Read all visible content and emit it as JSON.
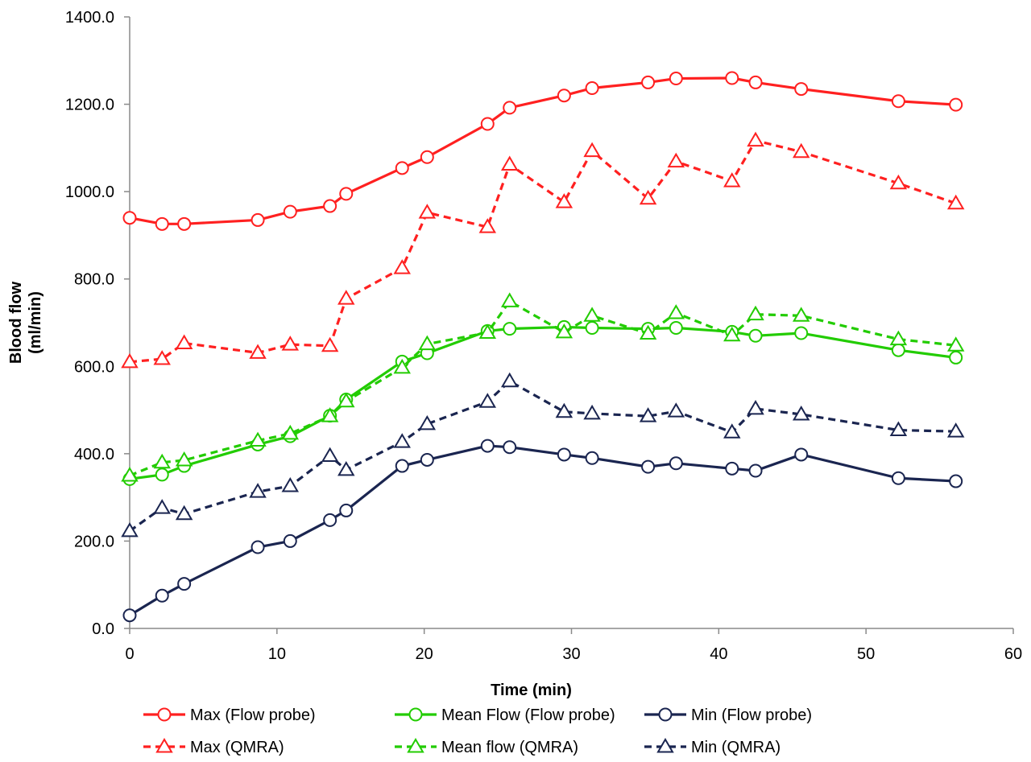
{
  "chart_data": {
    "type": "line",
    "title": "",
    "xlabel": "Time (min)",
    "ylabel": "Blood flow (ml/min)",
    "ylabel_lines": [
      "Blood flow",
      "(ml/min)"
    ],
    "xlim": [
      0,
      60
    ],
    "ylim": [
      0,
      1400
    ],
    "x_ticks": [
      0,
      10,
      20,
      30,
      40,
      50,
      60
    ],
    "x_tick_labels": [
      "0",
      "10",
      "20",
      "30",
      "40",
      "50",
      "60"
    ],
    "y_ticks": [
      0,
      200,
      400,
      600,
      800,
      1000,
      1200,
      1400
    ],
    "y_tick_labels": [
      "0.0",
      "200.0",
      "400.0",
      "600.0",
      "800.0",
      "1000.0",
      "1200.0",
      "1400.0"
    ],
    "grid": false,
    "legend_position": "bottom",
    "series": [
      {
        "name": "Max (Flow probe)",
        "color": "#ff2020",
        "dash": false,
        "marker": "circle",
        "x": [
          0,
          2.2,
          3.7,
          8.7,
          10.9,
          13.6,
          14.7,
          18.5,
          20.2,
          24.3,
          25.8,
          29.5,
          31.4,
          35.2,
          37.1,
          40.9,
          42.5,
          45.6,
          52.2,
          56.1
        ],
        "y": [
          940,
          926,
          926,
          935,
          954,
          967,
          995,
          1054,
          1079,
          1155,
          1192,
          1220,
          1237,
          1250,
          1259,
          1260,
          1250,
          1235,
          1207,
          1199
        ]
      },
      {
        "name": "Mean Flow (Flow probe)",
        "color": "#22cc00",
        "dash": false,
        "marker": "circle",
        "x": [
          0,
          2.2,
          3.7,
          8.7,
          10.9,
          13.6,
          14.7,
          18.5,
          20.2,
          24.3,
          25.8,
          29.5,
          31.4,
          35.2,
          37.1,
          40.9,
          42.5,
          45.6,
          52.2,
          56.1
        ],
        "y": [
          342,
          352,
          372,
          421,
          440,
          487,
          524,
          611,
          630,
          681,
          686,
          690,
          688,
          686,
          688,
          679,
          670,
          676,
          637,
          620
        ]
      },
      {
        "name": "Min (Flow probe)",
        "color": "#1a2550",
        "dash": false,
        "marker": "circle",
        "x": [
          0,
          2.2,
          3.7,
          8.7,
          10.9,
          13.6,
          14.7,
          18.5,
          20.2,
          24.3,
          25.8,
          29.5,
          31.4,
          35.2,
          37.1,
          40.9,
          42.5,
          45.6,
          52.2,
          56.1
        ],
        "y": [
          30,
          75,
          102,
          186,
          200,
          248,
          270,
          372,
          386,
          418,
          415,
          398,
          390,
          370,
          378,
          366,
          361,
          398,
          344,
          337
        ]
      },
      {
        "name": "Max (QMRA)",
        "color": "#ff2020",
        "dash": true,
        "marker": "triangle",
        "x": [
          0,
          2.2,
          3.7,
          8.7,
          10.9,
          13.6,
          14.7,
          18.5,
          20.2,
          24.3,
          25.8,
          29.5,
          31.4,
          35.2,
          37.1,
          40.9,
          42.5,
          45.6,
          52.2,
          56.1
        ],
        "y": [
          610,
          617,
          653,
          631,
          650,
          647,
          755,
          825,
          952,
          919,
          1062,
          976,
          1093,
          984,
          1069,
          1024,
          1117,
          1091,
          1019,
          973
        ]
      },
      {
        "name": "Mean flow (QMRA)",
        "color": "#22cc00",
        "dash": true,
        "marker": "triangle",
        "x": [
          0,
          2.2,
          3.7,
          8.7,
          10.9,
          13.6,
          14.7,
          18.5,
          20.2,
          24.3,
          25.8,
          29.5,
          31.4,
          35.2,
          37.1,
          40.9,
          42.5,
          45.6,
          52.2,
          56.1
        ],
        "y": [
          350,
          380,
          385,
          430,
          446,
          486,
          520,
          597,
          651,
          677,
          749,
          678,
          716,
          675,
          722,
          671,
          719,
          716,
          662,
          648
        ]
      },
      {
        "name": "Min (QMRA)",
        "color": "#1a2550",
        "dash": true,
        "marker": "triangle",
        "x": [
          0,
          2.2,
          3.7,
          8.7,
          10.9,
          13.6,
          14.7,
          18.5,
          20.2,
          24.3,
          25.8,
          29.5,
          31.4,
          35.2,
          37.1,
          40.9,
          42.5,
          45.6,
          52.2,
          56.1
        ],
        "y": [
          223,
          276,
          262,
          313,
          326,
          395,
          363,
          427,
          468,
          519,
          566,
          496,
          492,
          486,
          497,
          449,
          503,
          490,
          454,
          451
        ]
      }
    ]
  }
}
